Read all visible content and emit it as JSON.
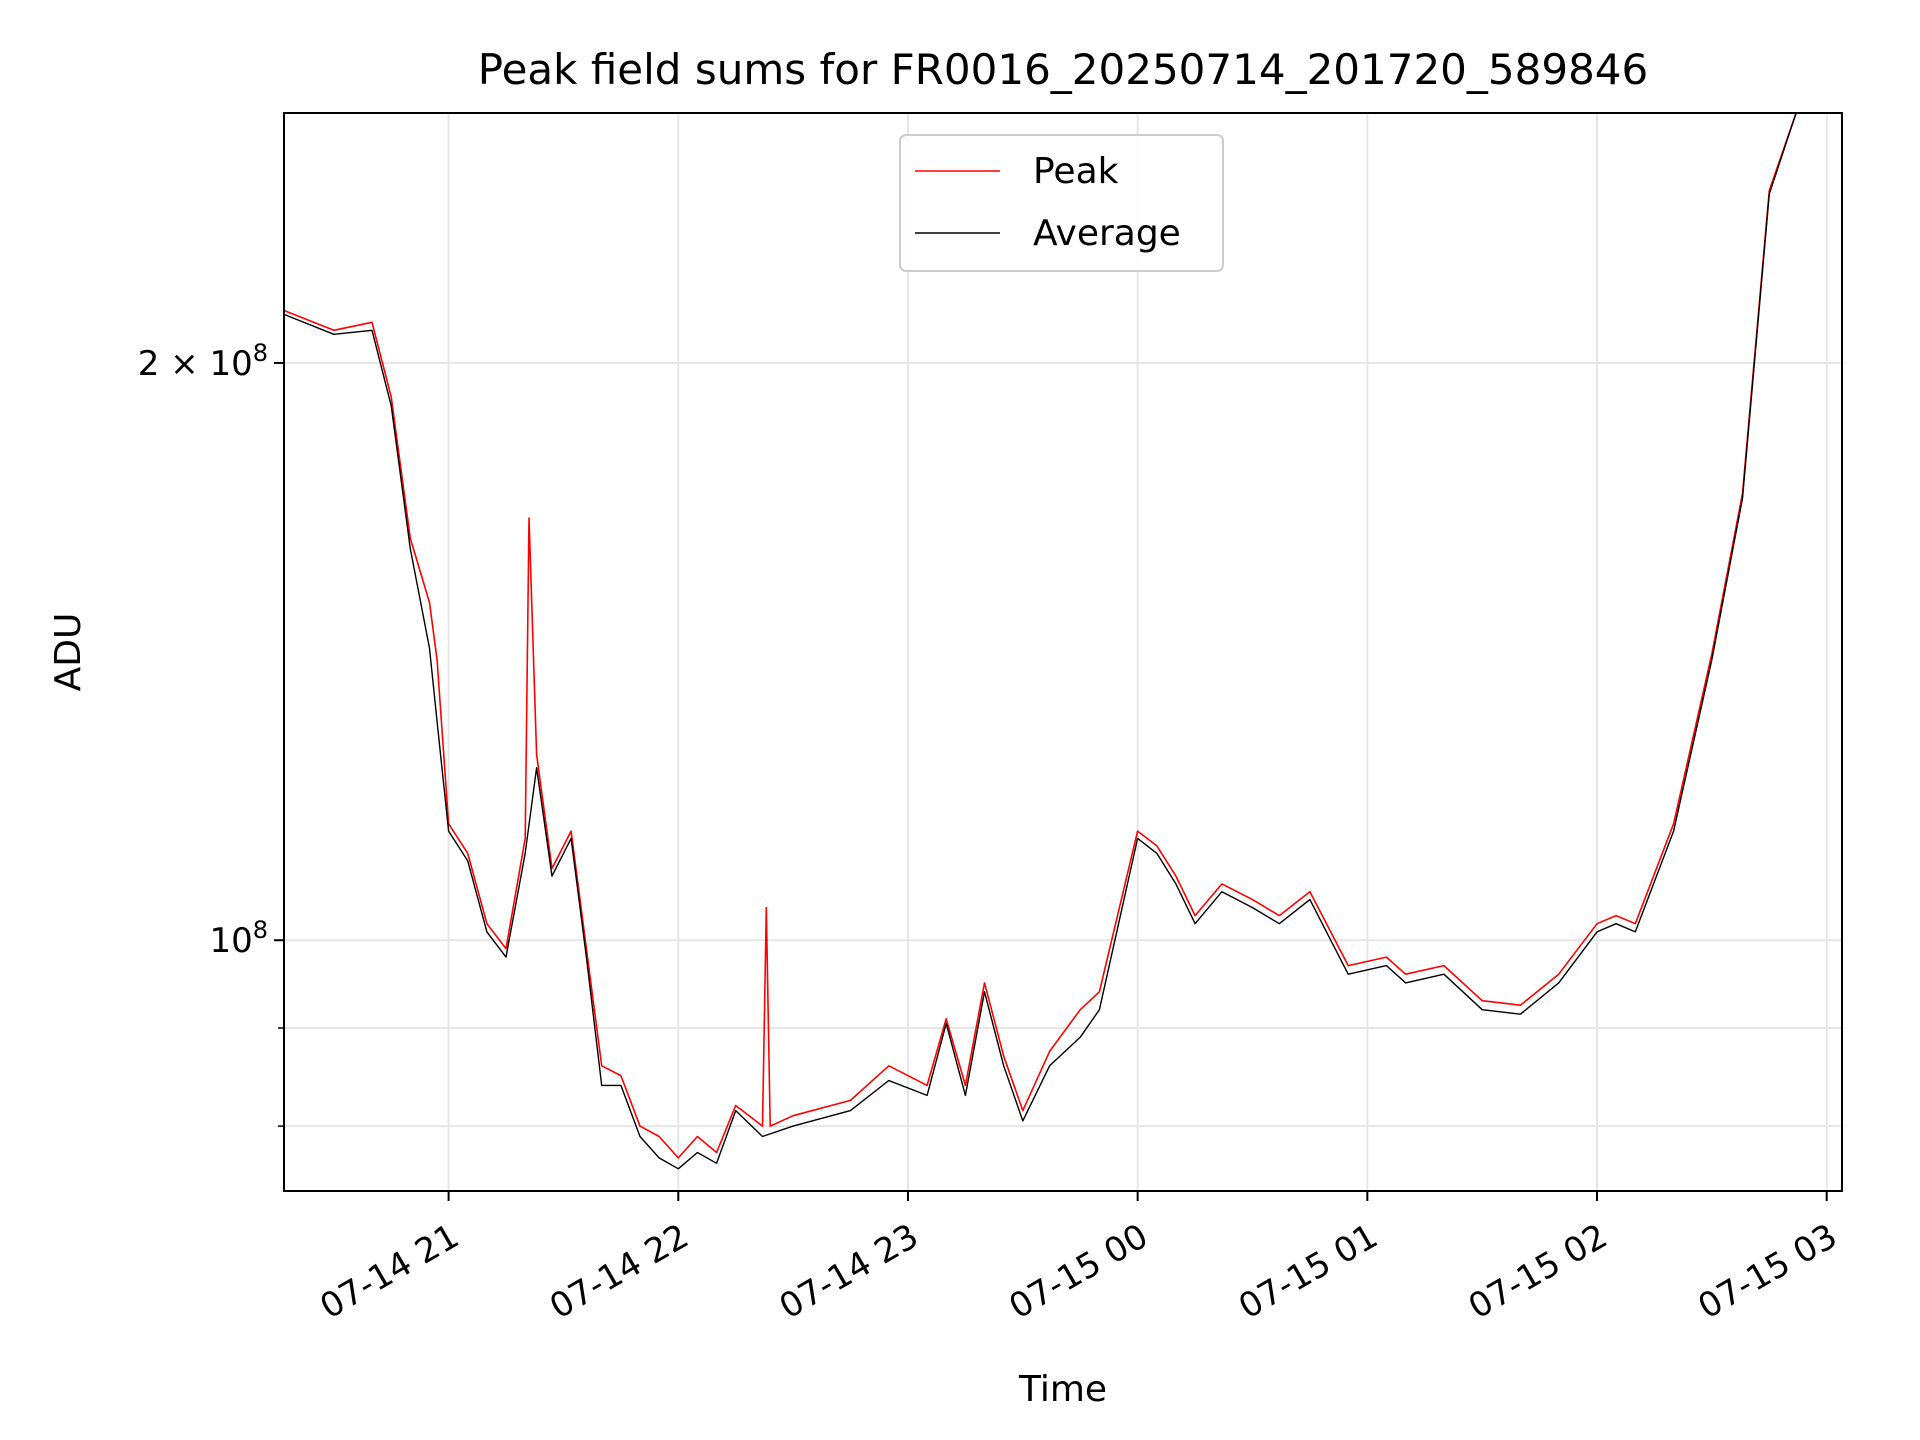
{
  "chart_data": {
    "type": "line",
    "title": "Peak field sums for FR0016_20250714_201720_589846",
    "xlabel": "Time",
    "ylabel": "ADU",
    "y_scale": "log",
    "ylim": [
      74000000,
      270000000
    ],
    "xlim": [
      "2025-07-14 20:17",
      "2025-07-15 03:04"
    ],
    "x_ticks": [
      {
        "value": "2025-07-14 21:00",
        "label": "07-14 21"
      },
      {
        "value": "2025-07-14 22:00",
        "label": "07-14 22"
      },
      {
        "value": "2025-07-14 23:00",
        "label": "07-14 23"
      },
      {
        "value": "2025-07-15 00:00",
        "label": "07-15 00"
      },
      {
        "value": "2025-07-15 01:00",
        "label": "07-15 01"
      },
      {
        "value": "2025-07-15 02:00",
        "label": "07-15 02"
      },
      {
        "value": "2025-07-15 03:00",
        "label": "07-15 03"
      }
    ],
    "y_major_ticks": [
      {
        "value": 100000000,
        "base": "10",
        "exp": "8",
        "coef": ""
      },
      {
        "value": 200000000,
        "base": "10",
        "exp": "8",
        "coef": "2 × "
      }
    ],
    "y_minor_ticks": [
      80000000,
      90000000
    ],
    "grid": true,
    "legend_position": "upper-center",
    "colors": {
      "peak": "#ff0000",
      "average": "#000000"
    },
    "series": [
      {
        "name": "Average",
        "color": "#000000",
        "points": [
          [
            "2025-07-14 20:17",
            212000000
          ],
          [
            "2025-07-14 20:30",
            207000000
          ],
          [
            "2025-07-14 20:40",
            208000000
          ],
          [
            "2025-07-14 20:45",
            190000000
          ],
          [
            "2025-07-14 20:50",
            160000000
          ],
          [
            "2025-07-14 20:55",
            142000000
          ],
          [
            "2025-07-14 20:57",
            130000000
          ],
          [
            "2025-07-14 21:00",
            114000000
          ],
          [
            "2025-07-14 21:05",
            110000000
          ],
          [
            "2025-07-14 21:10",
            101000000
          ],
          [
            "2025-07-14 21:15",
            98000000
          ],
          [
            "2025-07-14 21:20",
            111000000
          ],
          [
            "2025-07-14 21:23",
            123000000
          ],
          [
            "2025-07-14 21:27",
            108000000
          ],
          [
            "2025-07-14 21:32",
            113000000
          ],
          [
            "2025-07-14 21:36",
            98000000
          ],
          [
            "2025-07-14 21:40",
            84000000
          ],
          [
            "2025-07-14 21:45",
            84000000
          ],
          [
            "2025-07-14 21:50",
            79000000
          ],
          [
            "2025-07-14 21:55",
            77000000
          ],
          [
            "2025-07-14 22:00",
            76000000
          ],
          [
            "2025-07-14 22:05",
            77500000
          ],
          [
            "2025-07-14 22:10",
            76500000
          ],
          [
            "2025-07-14 22:15",
            81500000
          ],
          [
            "2025-07-14 22:22",
            79000000
          ],
          [
            "2025-07-14 22:30",
            80000000
          ],
          [
            "2025-07-14 22:45",
            81500000
          ],
          [
            "2025-07-14 22:55",
            84500000
          ],
          [
            "2025-07-14 23:05",
            83000000
          ],
          [
            "2025-07-14 23:10",
            90500000
          ],
          [
            "2025-07-14 23:15",
            83000000
          ],
          [
            "2025-07-14 23:20",
            94000000
          ],
          [
            "2025-07-14 23:25",
            86000000
          ],
          [
            "2025-07-14 23:30",
            80500000
          ],
          [
            "2025-07-14 23:37",
            86000000
          ],
          [
            "2025-07-14 23:45",
            89000000
          ],
          [
            "2025-07-14 23:50",
            92000000
          ],
          [
            "2025-07-15 00:00",
            113000000
          ],
          [
            "2025-07-15 00:05",
            111000000
          ],
          [
            "2025-07-15 00:10",
            107000000
          ],
          [
            "2025-07-15 00:15",
            102000000
          ],
          [
            "2025-07-15 00:22",
            106000000
          ],
          [
            "2025-07-15 00:30",
            104000000
          ],
          [
            "2025-07-15 00:37",
            102000000
          ],
          [
            "2025-07-15 00:45",
            105000000
          ],
          [
            "2025-07-15 00:55",
            96000000
          ],
          [
            "2025-07-15 01:05",
            97000000
          ],
          [
            "2025-07-15 01:10",
            95000000
          ],
          [
            "2025-07-15 01:20",
            96000000
          ],
          [
            "2025-07-15 01:30",
            92000000
          ],
          [
            "2025-07-15 01:40",
            91500000
          ],
          [
            "2025-07-15 01:50",
            95000000
          ],
          [
            "2025-07-15 02:00",
            101000000
          ],
          [
            "2025-07-15 02:05",
            102000000
          ],
          [
            "2025-07-15 02:10",
            101000000
          ],
          [
            "2025-07-15 02:20",
            114000000
          ],
          [
            "2025-07-15 02:30",
            140000000
          ],
          [
            "2025-07-15 02:38",
            170000000
          ],
          [
            "2025-07-15 02:45",
            245000000
          ],
          [
            "2025-07-15 02:52",
            270000000
          ]
        ]
      },
      {
        "name": "Peak",
        "color": "#ff0000",
        "points": [
          [
            "2025-07-14 20:17",
            213000000
          ],
          [
            "2025-07-14 20:30",
            208000000
          ],
          [
            "2025-07-14 20:40",
            210000000
          ],
          [
            "2025-07-14 20:45",
            192000000
          ],
          [
            "2025-07-14 20:50",
            162000000
          ],
          [
            "2025-07-14 20:55",
            150000000
          ],
          [
            "2025-07-14 20:57",
            140000000
          ],
          [
            "2025-07-14 21:00",
            115000000
          ],
          [
            "2025-07-14 21:05",
            111000000
          ],
          [
            "2025-07-14 21:10",
            102000000
          ],
          [
            "2025-07-14 21:15",
            99000000
          ],
          [
            "2025-07-14 21:20",
            113000000
          ],
          [
            "2025-07-14 21:21",
            166000000
          ],
          [
            "2025-07-14 21:23",
            125000000
          ],
          [
            "2025-07-14 21:27",
            109000000
          ],
          [
            "2025-07-14 21:32",
            114000000
          ],
          [
            "2025-07-14 21:36",
            99000000
          ],
          [
            "2025-07-14 21:40",
            86000000
          ],
          [
            "2025-07-14 21:45",
            85000000
          ],
          [
            "2025-07-14 21:50",
            80000000
          ],
          [
            "2025-07-14 21:55",
            79000000
          ],
          [
            "2025-07-14 22:00",
            77000000
          ],
          [
            "2025-07-14 22:05",
            79000000
          ],
          [
            "2025-07-14 22:10",
            77500000
          ],
          [
            "2025-07-14 22:15",
            82000000
          ],
          [
            "2025-07-14 22:22",
            80000000
          ],
          [
            "2025-07-14 22:23",
            104000000
          ],
          [
            "2025-07-14 22:24",
            80000000
          ],
          [
            "2025-07-14 22:30",
            81000000
          ],
          [
            "2025-07-14 22:45",
            82500000
          ],
          [
            "2025-07-14 22:55",
            86000000
          ],
          [
            "2025-07-14 23:05",
            84000000
          ],
          [
            "2025-07-14 23:10",
            91000000
          ],
          [
            "2025-07-14 23:15",
            84000000
          ],
          [
            "2025-07-14 23:20",
            95000000
          ],
          [
            "2025-07-14 23:25",
            87000000
          ],
          [
            "2025-07-14 23:30",
            81500000
          ],
          [
            "2025-07-14 23:37",
            87500000
          ],
          [
            "2025-07-14 23:45",
            92000000
          ],
          [
            "2025-07-14 23:50",
            94000000
          ],
          [
            "2025-07-15 00:00",
            114000000
          ],
          [
            "2025-07-15 00:05",
            112000000
          ],
          [
            "2025-07-15 00:10",
            108000000
          ],
          [
            "2025-07-15 00:15",
            103000000
          ],
          [
            "2025-07-15 00:22",
            107000000
          ],
          [
            "2025-07-15 00:30",
            105000000
          ],
          [
            "2025-07-15 00:37",
            103000000
          ],
          [
            "2025-07-15 00:45",
            106000000
          ],
          [
            "2025-07-15 00:55",
            97000000
          ],
          [
            "2025-07-15 01:05",
            98000000
          ],
          [
            "2025-07-15 01:10",
            96000000
          ],
          [
            "2025-07-15 01:20",
            97000000
          ],
          [
            "2025-07-15 01:30",
            93000000
          ],
          [
            "2025-07-15 01:40",
            92500000
          ],
          [
            "2025-07-15 01:50",
            96000000
          ],
          [
            "2025-07-15 02:00",
            102000000
          ],
          [
            "2025-07-15 02:05",
            103000000
          ],
          [
            "2025-07-15 02:10",
            102000000
          ],
          [
            "2025-07-15 02:20",
            115000000
          ],
          [
            "2025-07-15 02:30",
            141000000
          ],
          [
            "2025-07-15 02:38",
            171000000
          ],
          [
            "2025-07-15 02:45",
            246000000
          ],
          [
            "2025-07-15 02:52",
            270000000
          ]
        ]
      }
    ]
  }
}
